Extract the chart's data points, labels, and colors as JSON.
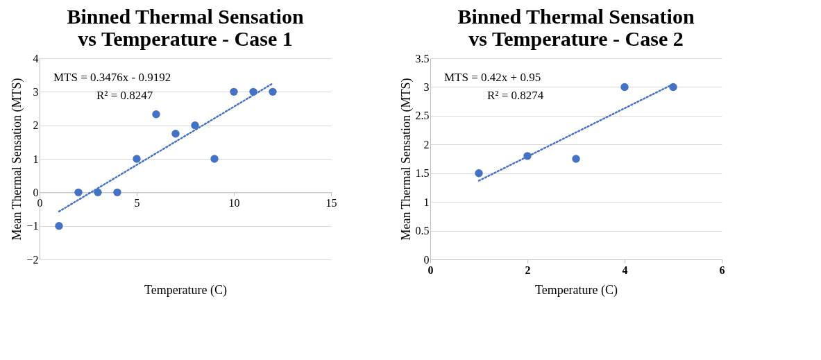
{
  "chart_data": [
    {
      "type": "scatter",
      "title": "Binned Thermal Sensation vs Temperature - Case 1",
      "xlabel": "Temperature (C)",
      "ylabel": "Mean Thermal Sensation (MTS)",
      "xlim": [
        0,
        15
      ],
      "xticks": [
        0,
        5,
        10,
        15
      ],
      "ylim": [
        -2,
        4
      ],
      "yticks": [
        -2,
        -1,
        0,
        1,
        2,
        3,
        4
      ],
      "grid": "y",
      "legend": false,
      "annotations": [
        "MTS = 0.3476x - 0.9192",
        "R² = 0.8247"
      ],
      "series": [
        {
          "color": "#4472c4",
          "marker": "circle",
          "x": [
            1,
            2,
            3,
            4,
            5,
            6,
            7,
            8,
            9,
            10,
            11,
            12
          ],
          "values": [
            -1,
            0,
            0,
            0,
            1,
            2.33,
            1.75,
            2,
            1,
            3,
            3,
            3
          ]
        },
        {
          "type": "line",
          "color": "#4472c4",
          "marker": "none",
          "line_style": "dotted",
          "x": [
            1,
            12
          ],
          "values": [
            -0.57,
            3.25
          ]
        }
      ]
    },
    {
      "type": "scatter",
      "title": "Binned Thermal Sensation vs Temperature - Case 2",
      "xlabel": "Temperature (C)",
      "ylabel": "Mean Thermal Sensation (MTS)",
      "xlim": [
        0,
        6
      ],
      "xticks": [
        0,
        2,
        4,
        6
      ],
      "ylim": [
        0,
        3.5
      ],
      "yticks": [
        0,
        0.5,
        1,
        1.5,
        2,
        2.5,
        3,
        3.5
      ],
      "grid": "y",
      "legend": false,
      "annotations": [
        "MTS = 0.42x + 0.95",
        "R² = 0.8274"
      ],
      "series": [
        {
          "color": "#4472c4",
          "marker": "circle",
          "x": [
            1,
            2,
            3,
            4,
            5
          ],
          "values": [
            1.5,
            1.8,
            1.75,
            3,
            3
          ]
        },
        {
          "type": "line",
          "color": "#4472c4",
          "marker": "none",
          "line_style": "dotted",
          "x": [
            1,
            5
          ],
          "values": [
            1.37,
            3.05
          ]
        }
      ]
    }
  ]
}
